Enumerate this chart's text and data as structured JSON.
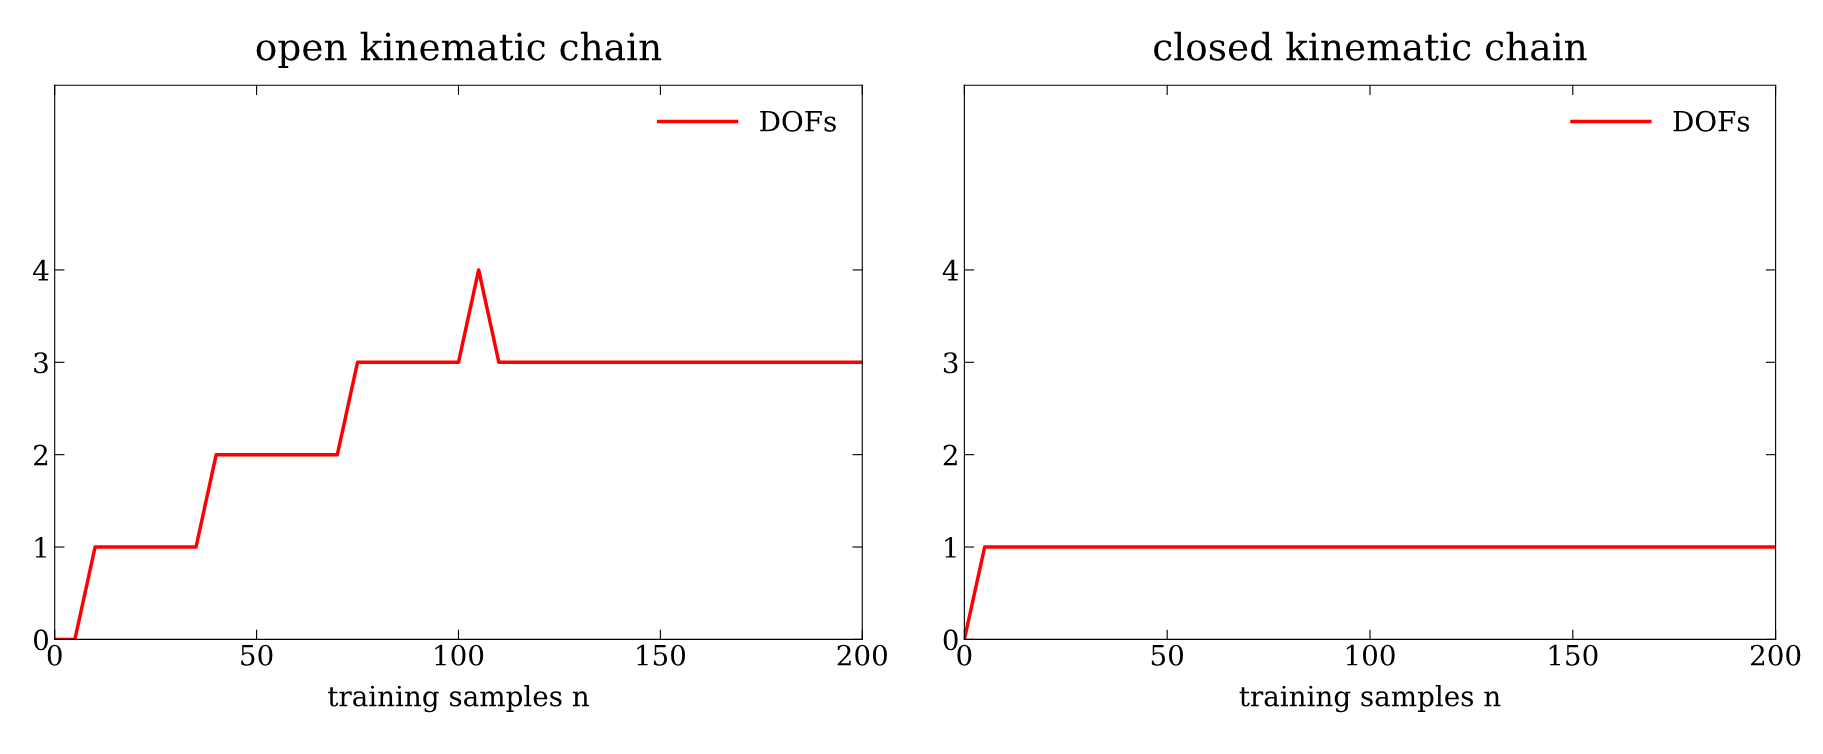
{
  "chart_data": [
    {
      "type": "line",
      "title": "open kinematic chain",
      "xlabel": "training samples n",
      "series": [
        {
          "name": "DOFs",
          "color": "#ff0000",
          "x": [
            0,
            5,
            10,
            35,
            40,
            70,
            75,
            100,
            105,
            110,
            200
          ],
          "values": [
            0,
            0,
            1,
            1,
            2,
            2,
            3,
            3,
            4,
            3,
            3
          ]
        }
      ],
      "xlim": [
        0,
        200
      ],
      "xticks": [
        0,
        50,
        100,
        150,
        200
      ],
      "ylim": [
        0,
        6
      ],
      "yticks": [
        0,
        1,
        2,
        3,
        4
      ],
      "legend": "top right",
      "grid": false,
      "marker": "none",
      "line_style": "solid"
    },
    {
      "type": "line",
      "title": "closed kinematic chain",
      "xlabel": "training samples n",
      "series": [
        {
          "name": "DOFs",
          "color": "#ff0000",
          "x": [
            0,
            5,
            200
          ],
          "values": [
            0,
            1,
            1
          ]
        }
      ],
      "xlim": [
        0,
        200
      ],
      "xticks": [
        0,
        50,
        100,
        150,
        200
      ],
      "ylim": [
        0,
        6
      ],
      "yticks": [
        0,
        1,
        2,
        3,
        4
      ],
      "legend": "top right",
      "grid": false,
      "marker": "none",
      "line_style": "solid"
    }
  ]
}
